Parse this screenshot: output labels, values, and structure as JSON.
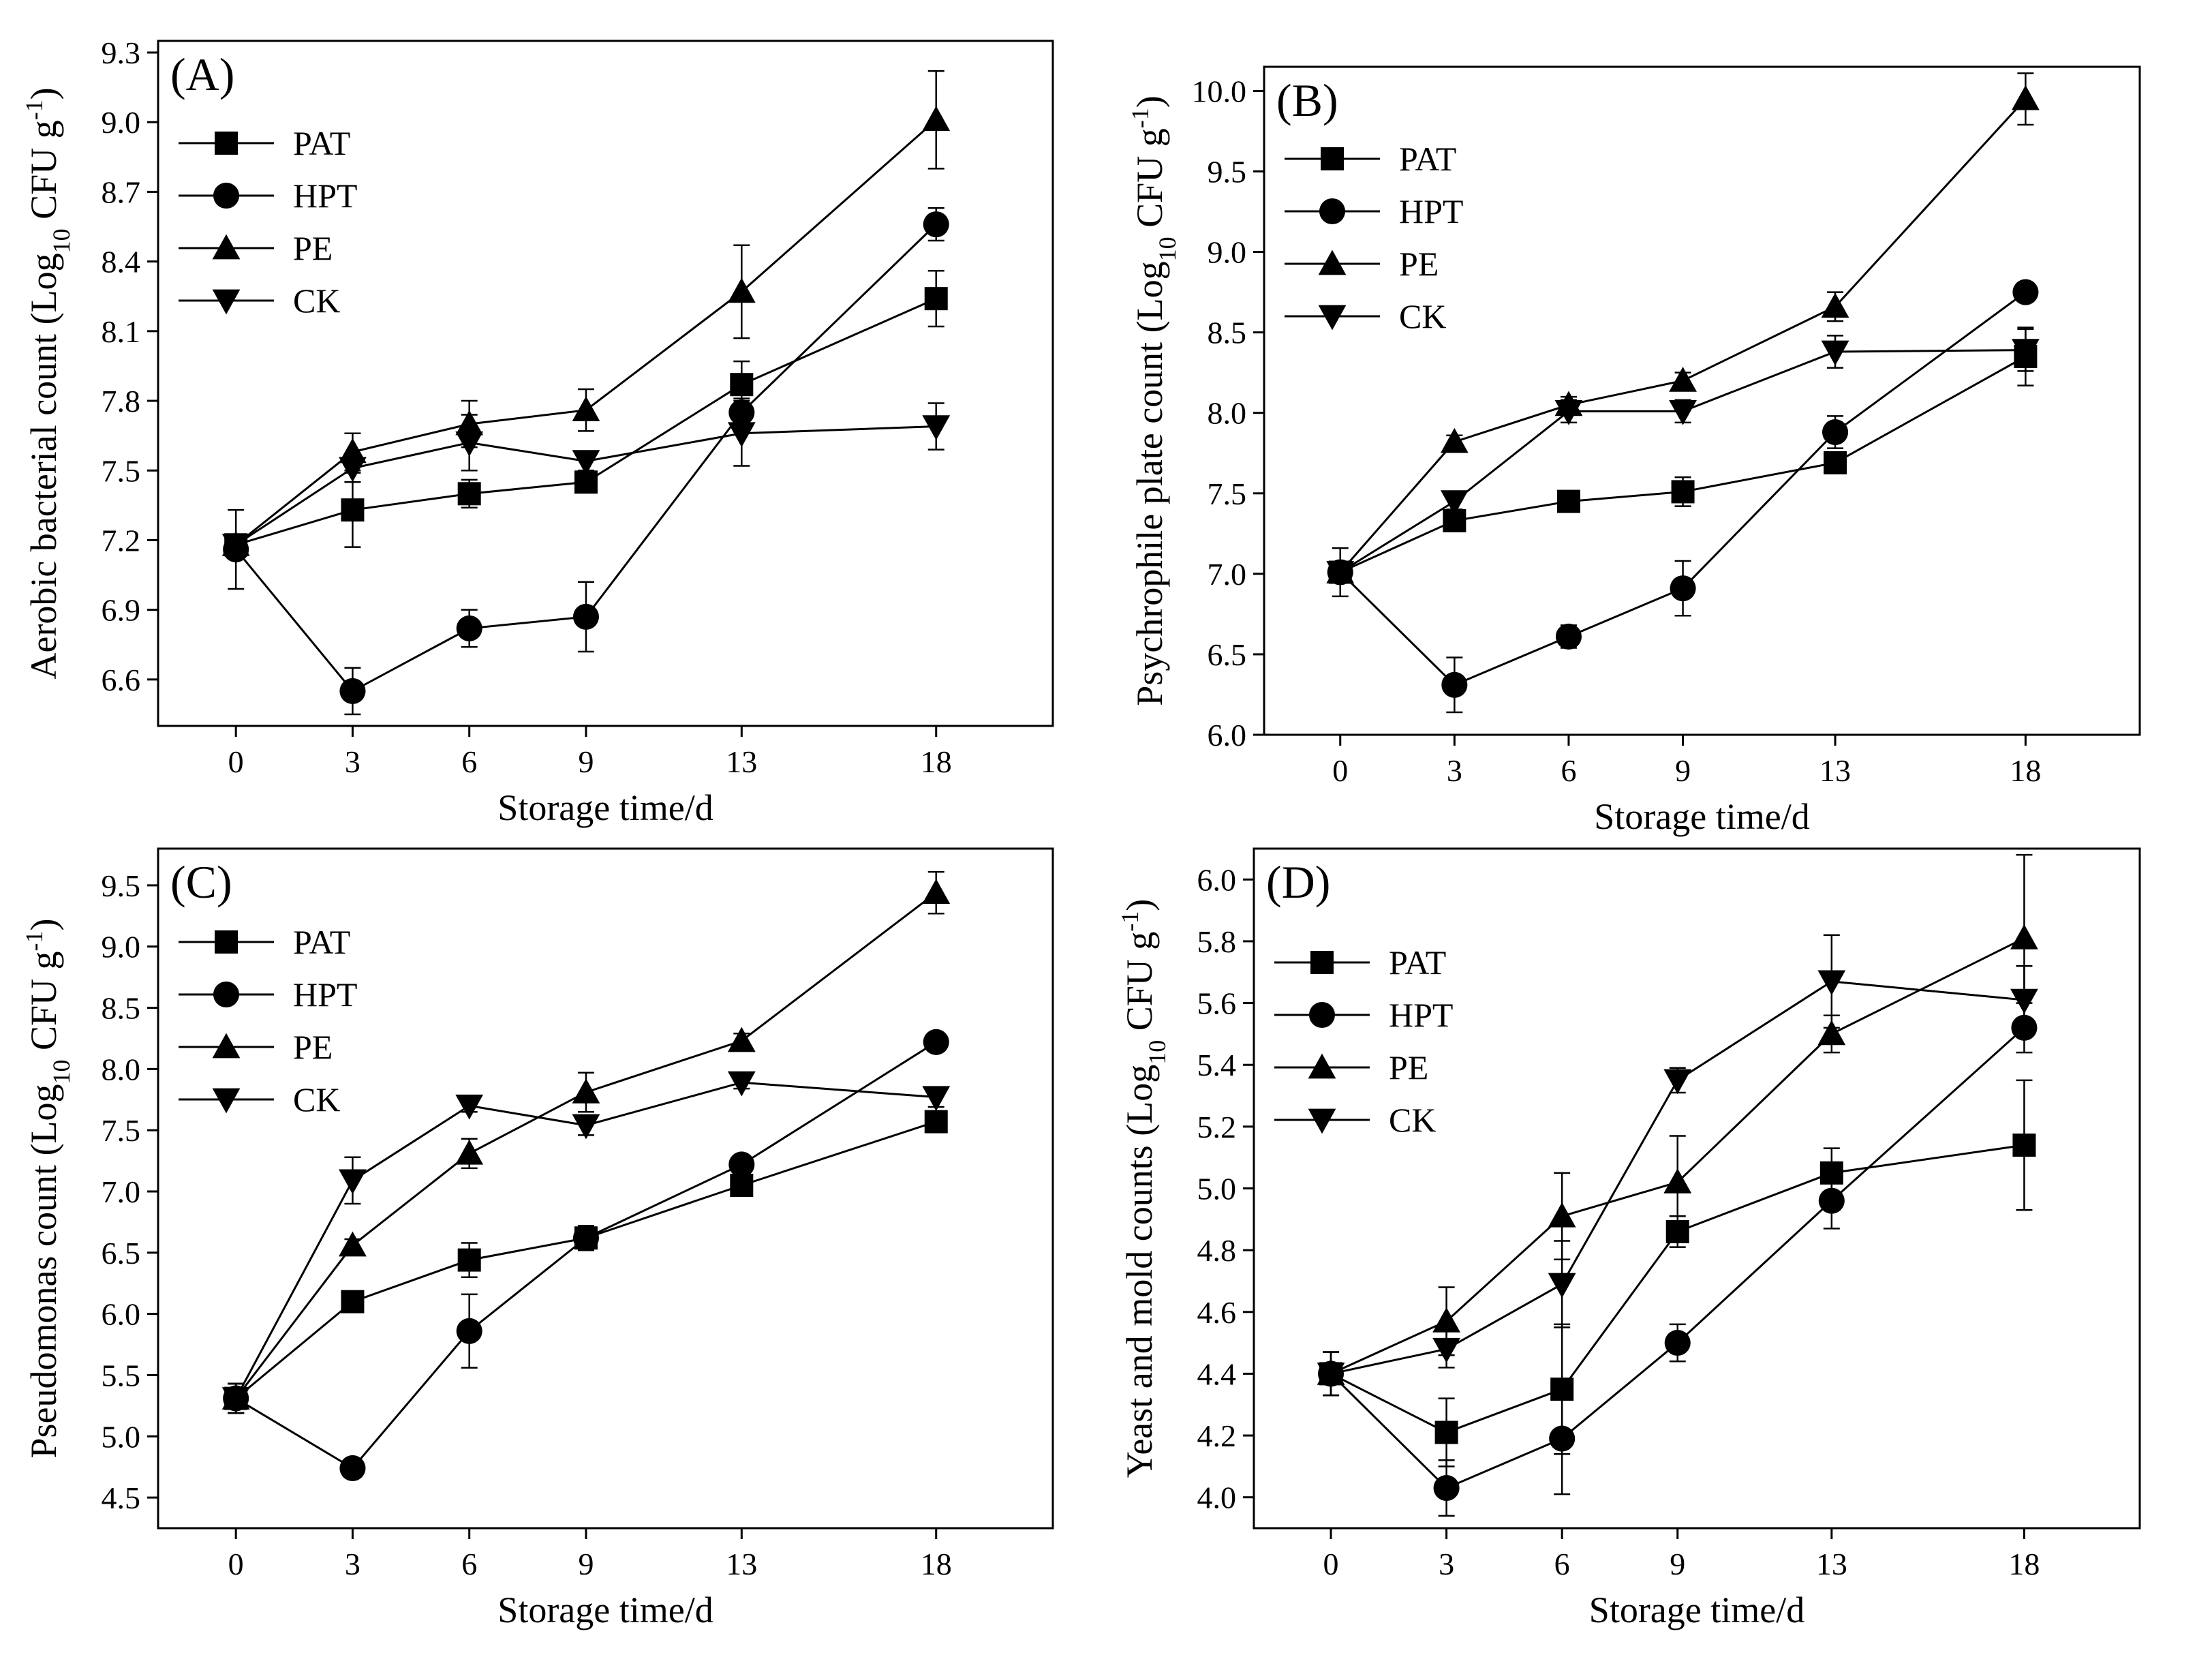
{
  "chart_data": [
    {
      "type": "line",
      "panel_label": "(A)",
      "xlabel": "Storage time/d",
      "ylabel_main": "Aerobic bacterial count (Log",
      "ylabel_sub": "10",
      "ylabel_unit": " CFU g",
      "ylabel_sup": "-1",
      "ylabel_close": ")",
      "x": [
        0,
        3,
        6,
        9,
        13,
        18
      ],
      "xlim": [
        -2,
        21
      ],
      "ylim": [
        6.4,
        9.35
      ],
      "yticks": [
        6.6,
        6.9,
        7.2,
        7.5,
        7.8,
        8.1,
        8.4,
        8.7,
        9.0,
        9.3
      ],
      "ytick_decimals": 1,
      "legend_position": "top-left",
      "series": [
        {
          "name": "PAT",
          "marker": "square",
          "values": [
            7.18,
            7.33,
            7.4,
            7.45,
            7.87,
            8.24
          ],
          "errors": [
            0.03,
            0.16,
            0.06,
            0.04,
            0.1,
            0.12
          ]
        },
        {
          "name": "HPT",
          "marker": "circle",
          "values": [
            7.16,
            6.55,
            6.82,
            6.87,
            7.75,
            8.56
          ],
          "errors": [
            0.17,
            0.1,
            0.08,
            0.15,
            0.06,
            0.07
          ]
        },
        {
          "name": "PE",
          "marker": "triangle-up",
          "values": [
            7.18,
            7.58,
            7.7,
            7.76,
            8.27,
            9.01
          ],
          "errors": [
            0.03,
            0.08,
            0.1,
            0.09,
            0.2,
            0.21
          ]
        },
        {
          "name": "CK",
          "marker": "triangle-down",
          "values": [
            7.18,
            7.51,
            7.62,
            7.54,
            7.66,
            7.69
          ],
          "errors": [
            0.03,
            0.06,
            0.12,
            0.04,
            0.14,
            0.1
          ]
        }
      ]
    },
    {
      "type": "line",
      "panel_label": "(B)",
      "xlabel": "Storage time/d",
      "ylabel_main": "Psychrophile plate count (Log",
      "ylabel_sub": "10",
      "ylabel_unit": " CFU g",
      "ylabel_sup": "-1",
      "ylabel_close": ")",
      "x": [
        0,
        3,
        6,
        9,
        13,
        18
      ],
      "xlim": [
        -2,
        21
      ],
      "ylim": [
        6.0,
        10.15
      ],
      "yticks": [
        6.0,
        6.5,
        7.0,
        7.5,
        8.0,
        8.5,
        9.0,
        9.5,
        10.0
      ],
      "ytick_decimals": 1,
      "legend_position": "top-left",
      "series": [
        {
          "name": "PAT",
          "marker": "square",
          "values": [
            7.01,
            7.33,
            7.45,
            7.51,
            7.69,
            8.35
          ],
          "errors": [
            0.05,
            0.05,
            0.04,
            0.09,
            0.06,
            0.18
          ]
        },
        {
          "name": "HPT",
          "marker": "circle",
          "values": [
            7.01,
            6.31,
            6.61,
            6.91,
            7.88,
            8.75
          ],
          "errors": [
            0.15,
            0.17,
            0.07,
            0.17,
            0.1,
            0.04
          ]
        },
        {
          "name": "PE",
          "marker": "triangle-up",
          "values": [
            7.01,
            7.82,
            8.05,
            8.2,
            8.66,
            9.95
          ],
          "errors": [
            0.05,
            0.04,
            0.05,
            0.05,
            0.09,
            0.16
          ]
        },
        {
          "name": "CK",
          "marker": "triangle-down",
          "values": [
            7.01,
            7.45,
            8.01,
            8.01,
            8.38,
            8.39
          ],
          "errors": [
            0.05,
            0.05,
            0.07,
            0.07,
            0.1,
            0.13
          ]
        }
      ]
    },
    {
      "type": "line",
      "panel_label": "(C)",
      "xlabel": "Storage time/d",
      "ylabel_main": "Pseudomonas count (Log",
      "ylabel_sub": "10",
      "ylabel_unit": " CFU g",
      "ylabel_sup": "-1",
      "ylabel_close": ")",
      "x": [
        0,
        3,
        6,
        9,
        13,
        18
      ],
      "xlim": [
        -2,
        21
      ],
      "ylim": [
        4.25,
        9.8
      ],
      "yticks": [
        4.5,
        5.0,
        5.5,
        6.0,
        6.5,
        7.0,
        7.5,
        8.0,
        8.5,
        9.0,
        9.5
      ],
      "ytick_decimals": 1,
      "legend_position": "top-left",
      "series": [
        {
          "name": "PAT",
          "marker": "square",
          "values": [
            5.31,
            6.1,
            6.44,
            6.62,
            7.05,
            7.57
          ],
          "errors": [
            0.12,
            0.06,
            0.14,
            0.1,
            0.06,
            0.05
          ]
        },
        {
          "name": "HPT",
          "marker": "circle",
          "values": [
            5.31,
            4.74,
            5.86,
            6.62,
            7.22,
            8.22
          ],
          "errors": [
            0.12,
            0.04,
            0.3,
            0.1,
            0.05,
            0.05
          ]
        },
        {
          "name": "PE",
          "marker": "triangle-up",
          "values": [
            5.31,
            6.56,
            7.31,
            7.81,
            8.23,
            9.44
          ],
          "errors": [
            0.12,
            0.05,
            0.12,
            0.16,
            0.06,
            0.17
          ]
        },
        {
          "name": "CK",
          "marker": "triangle-down",
          "values": [
            5.31,
            7.09,
            7.7,
            7.54,
            7.89,
            7.77
          ],
          "errors": [
            0.12,
            0.19,
            0.05,
            0.08,
            0.05,
            0.08
          ]
        }
      ]
    },
    {
      "type": "line",
      "panel_label": "(D)",
      "xlabel": "Storage time/d",
      "ylabel_main": "Yeast and mold counts (Log",
      "ylabel_sub": "10",
      "ylabel_unit": " CFU g",
      "ylabel_sup": "-1",
      "ylabel_close": ")",
      "x": [
        0,
        3,
        6,
        9,
        13,
        18
      ],
      "xlim": [
        -2,
        21
      ],
      "ylim": [
        3.9,
        6.1
      ],
      "yticks": [
        4.0,
        4.2,
        4.4,
        4.6,
        4.8,
        5.0,
        5.2,
        5.4,
        5.6,
        5.8,
        6.0
      ],
      "ytick_decimals": 1,
      "legend_position": "top-left",
      "series": [
        {
          "name": "PAT",
          "marker": "square",
          "values": [
            4.4,
            4.21,
            4.35,
            4.86,
            5.05,
            5.14
          ],
          "errors": [
            0.07,
            0.11,
            0.21,
            0.05,
            0.08,
            0.21
          ]
        },
        {
          "name": "HPT",
          "marker": "circle",
          "values": [
            4.4,
            4.03,
            4.19,
            4.5,
            4.96,
            5.52
          ],
          "errors": [
            0.07,
            0.09,
            0.18,
            0.06,
            0.09,
            0.08
          ]
        },
        {
          "name": "PE",
          "marker": "triangle-up",
          "values": [
            4.4,
            4.57,
            4.91,
            5.02,
            5.5,
            5.81
          ],
          "errors": [
            0.07,
            0.11,
            0.14,
            0.15,
            0.06,
            0.27
          ]
        },
        {
          "name": "CK",
          "marker": "triangle-down",
          "values": [
            4.4,
            4.48,
            4.69,
            5.35,
            5.67,
            5.61
          ],
          "errors": [
            0.07,
            0.06,
            0.14,
            0.04,
            0.15,
            0.11
          ]
        }
      ]
    }
  ]
}
